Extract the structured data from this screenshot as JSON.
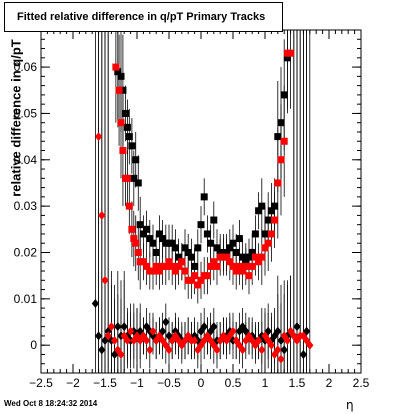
{
  "title": "Fitted relative difference in q/pT  Primary Tracks",
  "timestamp": "Wed Oct  8 18:24:32 2014",
  "chart_data": {
    "type": "scatter",
    "title": "Fitted relative difference in q/pT  Primary Tracks",
    "xlabel": "η",
    "ylabel": "relative difference in q/pT",
    "xlim": [
      -2.5,
      2.5
    ],
    "ylim": [
      -0.006,
      0.068
    ],
    "x_ticks": [
      -2.5,
      -2,
      -1.5,
      -1,
      -0.5,
      0,
      0.5,
      1,
      1.5,
      2,
      2.5
    ],
    "x_tick_labels": [
      "−2.5",
      "−2",
      "−1.5",
      "−1",
      "−0.5",
      "0",
      "0.5",
      "1",
      "1.5",
      "2",
      "2.5"
    ],
    "y_ticks": [
      0,
      0.01,
      0.02,
      0.03,
      0.04,
      0.05,
      0.06
    ],
    "y_tick_labels": [
      "0",
      "0.01",
      "0.02",
      "0.03",
      "0.04",
      "0.05",
      "0.06"
    ],
    "grid": false,
    "series": [
      {
        "marker": "square",
        "color": "#000000",
        "x": [
          -1.3,
          -1.25,
          -1.22,
          -1.18,
          -1.15,
          -1.12,
          -1.08,
          -1.05,
          -1.02,
          -0.98,
          -0.95,
          -0.9,
          -0.85,
          -0.8,
          -0.75,
          -0.7,
          -0.65,
          -0.6,
          -0.55,
          -0.5,
          -0.45,
          -0.4,
          -0.35,
          -0.3,
          -0.25,
          -0.2,
          -0.15,
          -0.1,
          -0.05,
          0.0,
          0.05,
          0.1,
          0.15,
          0.2,
          0.25,
          0.3,
          0.35,
          0.4,
          0.45,
          0.5,
          0.55,
          0.6,
          0.65,
          0.7,
          0.75,
          0.8,
          0.85,
          0.9,
          0.95,
          1.0,
          1.05,
          1.1,
          1.15,
          1.2,
          1.25,
          1.3,
          1.35
        ],
        "y": [
          0.059,
          0.058,
          0.055,
          0.05,
          0.047,
          0.045,
          0.043,
          0.036,
          0.04,
          0.035,
          0.026,
          0.024,
          0.025,
          0.023,
          0.022,
          0.02,
          0.024,
          0.023,
          0.022,
          0.022,
          0.022,
          0.021,
          0.019,
          0.018,
          0.021,
          0.02,
          0.019,
          0.017,
          0.021,
          0.026,
          0.032,
          0.024,
          0.022,
          0.027,
          0.021,
          0.02,
          0.02,
          0.02,
          0.021,
          0.022,
          0.02,
          0.023,
          0.019,
          0.018,
          0.019,
          0.02,
          0.024,
          0.029,
          0.03,
          0.024,
          0.027,
          0.029,
          0.03,
          0.045,
          0.048,
          0.054,
          0.062
        ]
      },
      {
        "marker": "square",
        "color": "#ff0000",
        "x": [
          -1.33,
          -1.28,
          -1.25,
          -1.22,
          -1.18,
          -1.15,
          -1.12,
          -1.08,
          -1.05,
          -1.02,
          -0.98,
          -0.95,
          -0.9,
          -0.85,
          -0.8,
          -0.75,
          -0.7,
          -0.65,
          -0.6,
          -0.55,
          -0.5,
          -0.45,
          -0.4,
          -0.35,
          -0.3,
          -0.25,
          -0.2,
          -0.15,
          -0.1,
          -0.05,
          0.0,
          0.05,
          0.1,
          0.15,
          0.2,
          0.25,
          0.3,
          0.35,
          0.4,
          0.45,
          0.5,
          0.55,
          0.6,
          0.65,
          0.7,
          0.75,
          0.8,
          0.85,
          0.9,
          0.95,
          1.0,
          1.05,
          1.1,
          1.15,
          1.2,
          1.25,
          1.3,
          1.35,
          1.4
        ],
        "y": [
          0.06,
          0.055,
          0.048,
          0.042,
          0.036,
          0.036,
          0.03,
          0.025,
          0.023,
          0.022,
          0.02,
          0.018,
          0.018,
          0.017,
          0.016,
          0.016,
          0.017,
          0.016,
          0.017,
          0.017,
          0.018,
          0.017,
          0.016,
          0.017,
          0.018,
          0.016,
          0.014,
          0.014,
          0.015,
          0.013,
          0.014,
          0.015,
          0.015,
          0.017,
          0.018,
          0.017,
          0.019,
          0.019,
          0.019,
          0.018,
          0.017,
          0.016,
          0.017,
          0.016,
          0.017,
          0.015,
          0.017,
          0.019,
          0.018,
          0.019,
          0.021,
          0.022,
          0.024,
          0.027,
          0.035,
          0.04,
          0.044,
          0.063,
          0.063
        ]
      },
      {
        "marker": "diamond",
        "color": "#000000",
        "x": [
          -1.65,
          -1.6,
          -1.55,
          -1.5,
          -1.45,
          -1.4,
          -1.35,
          -1.3,
          -1.25,
          -1.2,
          -1.15,
          -1.1,
          -1.05,
          -1.0,
          -0.95,
          -0.9,
          -0.85,
          -0.8,
          -0.75,
          -0.7,
          -0.65,
          -0.6,
          -0.55,
          -0.5,
          -0.45,
          -0.4,
          -0.35,
          -0.3,
          -0.25,
          -0.2,
          -0.15,
          -0.1,
          -0.05,
          0.0,
          0.05,
          0.1,
          0.15,
          0.2,
          0.25,
          0.3,
          0.35,
          0.4,
          0.45,
          0.5,
          0.55,
          0.6,
          0.65,
          0.7,
          0.75,
          0.8,
          0.85,
          0.9,
          0.95,
          1.0,
          1.05,
          1.1,
          1.15,
          1.2,
          1.25,
          1.3,
          1.35,
          1.4,
          1.45,
          1.5,
          1.55,
          1.6,
          1.65
        ],
        "y": [
          0.009,
          0.002,
          -0.001,
          0.001,
          0.003,
          0.001,
          -0.002,
          0.004,
          0.002,
          0.004,
          0.002,
          0.001,
          0.003,
          0.002,
          0.003,
          0.002,
          0.004,
          0.003,
          0.002,
          0.001,
          0.002,
          0.003,
          0.005,
          0.002,
          0.001,
          0.003,
          0.002,
          0.001,
          0.001,
          0.002,
          0.001,
          0.002,
          0.001,
          0.003,
          0.004,
          0.002,
          0.003,
          0.004,
          0.001,
          0.001,
          0.002,
          0.002,
          0.003,
          0.001,
          0.001,
          0.003,
          0.004,
          0.003,
          0.002,
          0.002,
          0.001,
          0.001,
          0.002,
          0.001,
          0.003,
          0.001,
          0.002,
          0.003,
          0.001,
          -0.001,
          0.002,
          0.003,
          0.002,
          0.004,
          0.002,
          -0.002,
          0.003
        ]
      },
      {
        "marker": "diamond",
        "color": "#ff0000",
        "x": [
          -1.6,
          -1.55,
          -1.5,
          -1.45,
          -1.4,
          -1.35,
          -1.3,
          -1.25,
          -1.2,
          -1.15,
          -1.1,
          -1.05,
          -1.0,
          -0.95,
          -0.9,
          -0.85,
          -0.8,
          -0.75,
          -0.7,
          -0.65,
          -0.6,
          -0.55,
          -0.5,
          -0.45,
          -0.4,
          -0.35,
          -0.3,
          -0.25,
          -0.2,
          -0.15,
          -0.1,
          -0.05,
          0.0,
          0.05,
          0.1,
          0.15,
          0.2,
          0.25,
          0.3,
          0.35,
          0.4,
          0.45,
          0.5,
          0.55,
          0.6,
          0.65,
          0.7,
          0.75,
          0.8,
          0.85,
          0.9,
          0.95,
          1.0,
          1.05,
          1.1,
          1.15,
          1.2,
          1.25,
          1.3,
          1.35,
          1.4,
          1.45,
          1.5,
          1.55,
          1.6,
          1.65,
          1.7
        ],
        "y": [
          0.045,
          0.028,
          0.014,
          0.002,
          0.004,
          0.001,
          -0.001,
          -0.002,
          0.002,
          0.001,
          0.003,
          0.001,
          0.002,
          0.001,
          0.002,
          0.001,
          -0.001,
          0.003,
          0.001,
          0.002,
          0.001,
          0.0,
          -0.001,
          0.001,
          0.002,
          0.001,
          0.0,
          0.001,
          0.002,
          0.001,
          0.001,
          -0.001,
          0.0,
          0.001,
          0.002,
          0.001,
          0.0,
          -0.001,
          0.001,
          0.002,
          0.001,
          0.002,
          0.003,
          0.001,
          0.0,
          -0.001,
          0.001,
          0.002,
          0.001,
          0.0,
          0.001,
          -0.001,
          0.002,
          0.001,
          0.0,
          -0.002,
          -0.001,
          -0.003,
          0.002,
          0.001,
          0.003,
          0.002,
          0.001,
          0.002,
          0.002,
          0.001,
          0.0
        ]
      }
    ]
  }
}
